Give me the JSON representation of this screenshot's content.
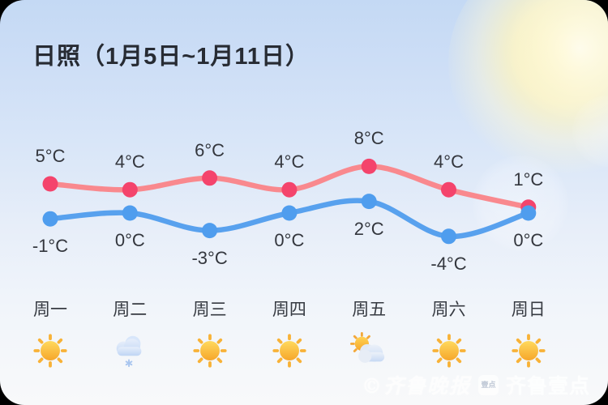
{
  "title": "日照（1月5日~1月11日）",
  "watermark": {
    "copyright_mark": "©",
    "paper_name": "齐鲁晚报",
    "badge_text": "壹点",
    "app_name": "齐鲁壹点"
  },
  "colors": {
    "high_line": "#f9898e",
    "high_point": "#f4446c",
    "low_line": "#58a1ee",
    "low_point": "#4f9dee",
    "title_text": "#272b33",
    "label_text": "#33363d"
  },
  "chart_data": {
    "type": "line",
    "title": "日照（1月5日~1月11日）",
    "categories": [
      "周一",
      "周二",
      "周三",
      "周四",
      "周五",
      "周六",
      "周日"
    ],
    "series": [
      {
        "name": "high",
        "values": [
          5,
          4,
          6,
          4,
          8,
          4,
          1
        ],
        "labels": [
          "5°C",
          "4°C",
          "6°C",
          "4°C",
          "8°C",
          "4°C",
          "1°C"
        ],
        "line_color": "#f9898e",
        "point_color": "#f4446c",
        "label_side": "above"
      },
      {
        "name": "low",
        "values": [
          -1,
          0,
          -3,
          0,
          2,
          -4,
          0
        ],
        "labels": [
          "-1°C",
          "0°C",
          "-3°C",
          "0°C",
          "2°C",
          "-4°C",
          "0°C"
        ],
        "line_color": "#58a1ee",
        "point_color": "#4f9dee",
        "label_side": "below"
      }
    ],
    "icons": [
      "sunny",
      "light-snow",
      "sunny",
      "sunny",
      "partly-cloudy",
      "sunny",
      "sunny"
    ],
    "xlabel": "",
    "ylabel": "",
    "grid": false,
    "legend": "none",
    "ylim": [
      -6,
      10
    ]
  }
}
